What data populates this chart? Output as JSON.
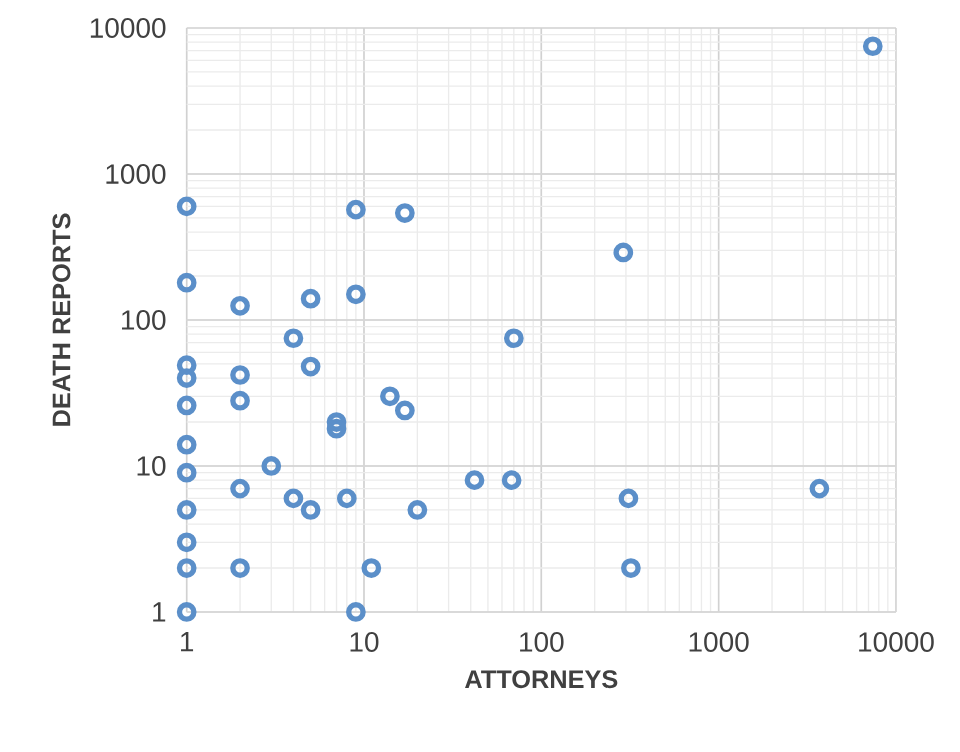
{
  "chart_data": {
    "type": "scatter",
    "xlabel": "ATTORNEYS",
    "ylabel": "DEATH REPORTS",
    "log": "xy",
    "grid": true,
    "marker": "circle",
    "color": "#5b8fc9",
    "xlim": [
      1,
      10000
    ],
    "ylim": [
      1,
      10000
    ],
    "xticks": [
      1,
      10,
      100,
      1000,
      10000
    ],
    "yticks": [
      1,
      10,
      100,
      1000,
      10000
    ],
    "x": [
      1,
      1,
      1,
      1,
      1,
      1,
      1,
      1,
      1,
      1,
      1,
      2,
      2,
      2,
      2,
      2,
      3,
      4,
      4,
      5,
      5,
      5,
      7,
      7,
      8,
      9,
      9,
      9,
      11,
      14,
      17,
      17,
      20,
      42,
      70,
      68,
      290,
      310,
      320,
      3700,
      7400
    ],
    "values": [
      600,
      180,
      49,
      40,
      26,
      14,
      9,
      5,
      3,
      2,
      1,
      125,
      42,
      28,
      7,
      2,
      10,
      75,
      6,
      140,
      48,
      5,
      20,
      18,
      6,
      570,
      150,
      1,
      2,
      30,
      24,
      540,
      5,
      8,
      75,
      8,
      290,
      6,
      2,
      7,
      7500
    ]
  }
}
